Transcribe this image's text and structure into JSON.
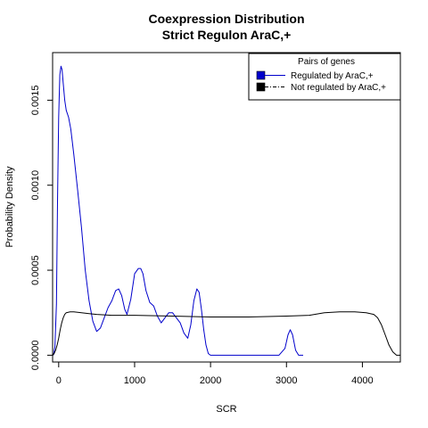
{
  "chart_data": {
    "type": "line",
    "title": [
      "Coexpression Distribution",
      "Strict Regulon AraC,+"
    ],
    "xlabel": "SCR",
    "ylabel": "Probability Density",
    "xlim": [
      -80,
      4500
    ],
    "ylim": [
      -4e-05,
      0.00178
    ],
    "x_ticks": [
      0,
      1000,
      2000,
      3000,
      4000
    ],
    "y_ticks": [
      0.0,
      0.0005,
      0.001,
      0.0015
    ],
    "y_tick_labels": [
      "0.0000",
      "0.0005",
      "0.0010",
      "0.0015"
    ],
    "grid": false,
    "legend": {
      "title": "Pairs of genes",
      "placement": "top-right",
      "entries": [
        "Regulated by  AraC,+",
        "Not regulated by  AraC,+"
      ]
    },
    "series": [
      {
        "name": "Regulated by  AraC,+",
        "color": "#0000cc",
        "line": "solid",
        "x": [
          -70,
          -50,
          -30,
          -15,
          0,
          15,
          30,
          45,
          60,
          80,
          100,
          130,
          160,
          200,
          250,
          300,
          350,
          400,
          450,
          500,
          550,
          600,
          650,
          700,
          750,
          790,
          830,
          870,
          900,
          950,
          1000,
          1050,
          1080,
          1110,
          1150,
          1200,
          1250,
          1300,
          1350,
          1400,
          1450,
          1500,
          1550,
          1600,
          1650,
          1700,
          1740,
          1780,
          1820,
          1850,
          1880,
          1910,
          1940,
          1970,
          2000,
          2100,
          2500,
          2900,
          2980,
          3020,
          3050,
          3080,
          3120,
          3160,
          3220
        ],
        "y": [
          0.0,
          5e-05,
          0.0003,
          0.0009,
          0.0014,
          0.00165,
          0.0017,
          0.00168,
          0.0016,
          0.0015,
          0.00144,
          0.0014,
          0.00133,
          0.00118,
          0.00097,
          0.00075,
          0.0005,
          0.00032,
          0.0002,
          0.00014,
          0.00016,
          0.00022,
          0.00028,
          0.00032,
          0.00038,
          0.00039,
          0.00035,
          0.00027,
          0.00024,
          0.00033,
          0.00048,
          0.00051,
          0.00051,
          0.00048,
          0.00038,
          0.00031,
          0.00029,
          0.00023,
          0.00019,
          0.00022,
          0.00025,
          0.00025,
          0.00022,
          0.00019,
          0.00013,
          0.0001,
          0.00018,
          0.00032,
          0.00039,
          0.00037,
          0.00027,
          0.00015,
          6e-05,
          1e-05,
          0.0,
          0.0,
          0.0,
          0.0,
          4e-05,
          0.00012,
          0.00015,
          0.00012,
          3e-05,
          0.0,
          0.0
        ]
      },
      {
        "name": "Not regulated by  AraC,+",
        "color": "#000000",
        "line": "solid",
        "x": [
          -80,
          -60,
          -40,
          -20,
          0,
          20,
          40,
          60,
          80,
          100,
          150,
          200,
          300,
          400,
          500,
          700,
          1000,
          1500,
          2000,
          2500,
          3000,
          3300,
          3500,
          3700,
          3900,
          4050,
          4150,
          4200,
          4250,
          4300,
          4350,
          4400,
          4450,
          4500
        ],
        "y": [
          0.0,
          1e-05,
          3e-05,
          6e-05,
          0.0001,
          0.00015,
          0.00019,
          0.00022,
          0.00024,
          0.00025,
          0.000255,
          0.000255,
          0.00025,
          0.000245,
          0.00024,
          0.000235,
          0.000235,
          0.00023,
          0.000225,
          0.000225,
          0.00023,
          0.000235,
          0.00025,
          0.000255,
          0.000255,
          0.00025,
          0.00024,
          0.00022,
          0.00018,
          0.00012,
          6e-05,
          2e-05,
          0.0,
          0.0
        ]
      }
    ]
  }
}
